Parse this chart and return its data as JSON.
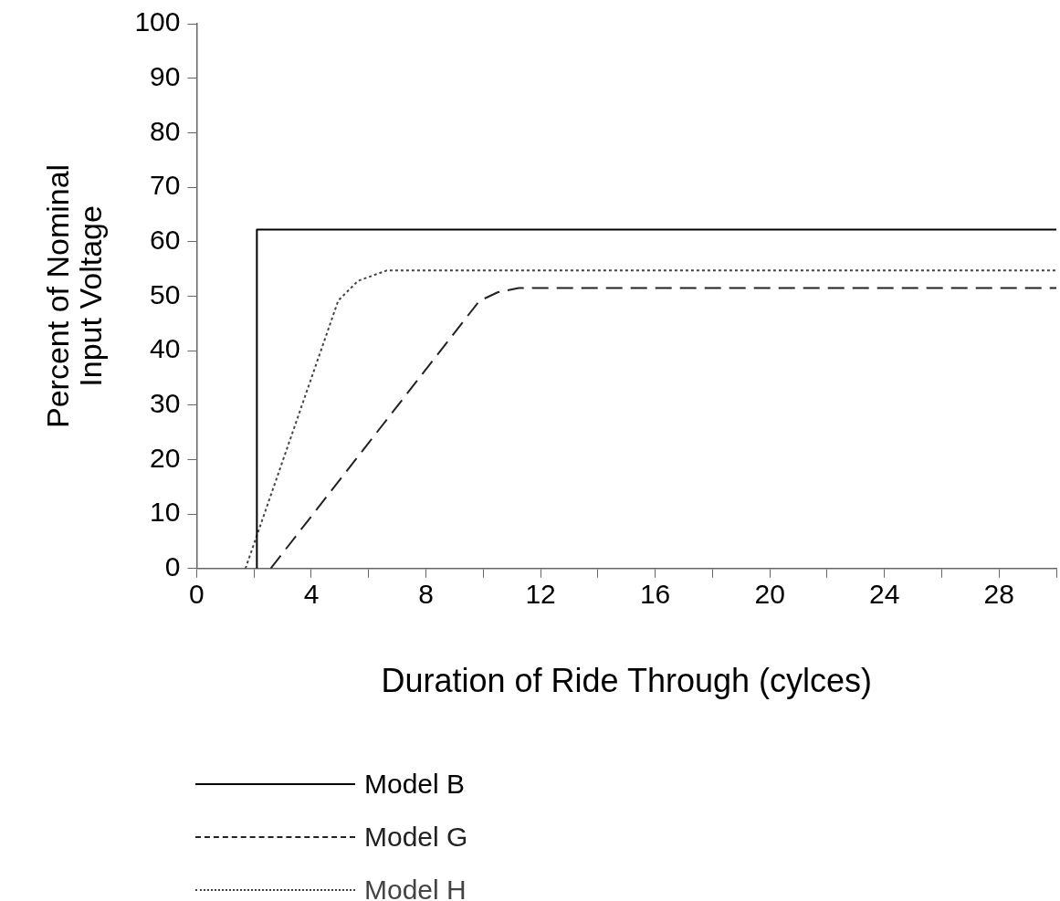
{
  "chart_data": {
    "type": "line",
    "xlabel": "Duration of Ride Through (cylces)",
    "ylabel": "Percent of Nominal\nInput Voltage",
    "xlim": [
      0,
      30
    ],
    "xticks": [
      0,
      {
        "value": 2,
        "label": null
      },
      4,
      {
        "value": 6,
        "label": null
      },
      8,
      {
        "value": 10,
        "label": null
      },
      12,
      {
        "value": 14,
        "label": null
      },
      16,
      {
        "value": 18,
        "label": null
      },
      20,
      {
        "value": 22,
        "label": null
      },
      24,
      {
        "value": 26,
        "label": null
      },
      28,
      {
        "value": 30,
        "label": null
      }
    ],
    "ylim": [
      0,
      100
    ],
    "yticks": [
      0,
      10,
      20,
      30,
      40,
      50,
      60,
      70,
      80,
      90,
      100
    ],
    "grid": false,
    "legend": "bottom",
    "marker": "none",
    "series": [
      {
        "name": "Model B",
        "color": "#000000",
        "line_style": "solid",
        "x": [
          2.1,
          2.1,
          30
        ],
        "values": [
          0,
          62.2,
          62.2
        ]
      },
      {
        "name": "Model G",
        "color": "#222222",
        "line_style": "dashed",
        "x": [
          2.58,
          9.86,
          10.5,
          11.24,
          30
        ],
        "values": [
          0,
          49.1,
          50.7,
          51.5,
          51.5
        ]
      },
      {
        "name": "Model H",
        "color": "#444444",
        "line_style": "dotted",
        "x": [
          1.7,
          4.94,
          5.63,
          6.63,
          30
        ],
        "values": [
          0,
          49.2,
          52.8,
          54.7,
          54.7
        ]
      }
    ]
  }
}
